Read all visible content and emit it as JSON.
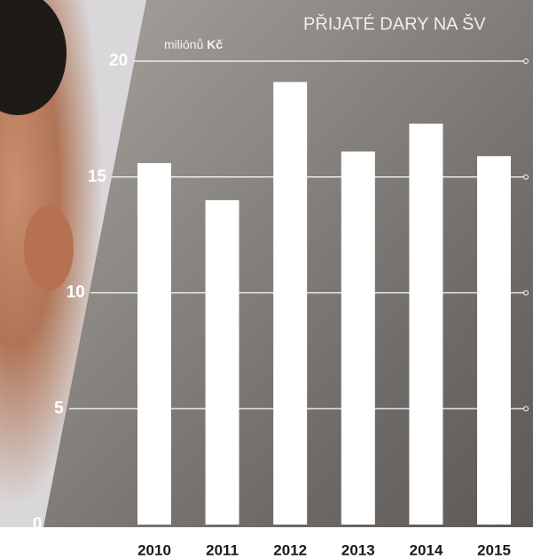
{
  "chart_data": {
    "type": "bar",
    "title": "PŘIJATÉ DARY NA ŠV",
    "ylabel": "miliónů",
    "ylabel_unit": "Kč",
    "categories": [
      "2010",
      "2011",
      "2012",
      "2013",
      "2014",
      "2015"
    ],
    "values": [
      15.6,
      14.0,
      19.1,
      16.1,
      17.3,
      15.9
    ],
    "color": "#ffffff",
    "ylim": [
      0,
      20
    ],
    "yticks": [
      0,
      5,
      10,
      15,
      20
    ],
    "grid": true
  }
}
